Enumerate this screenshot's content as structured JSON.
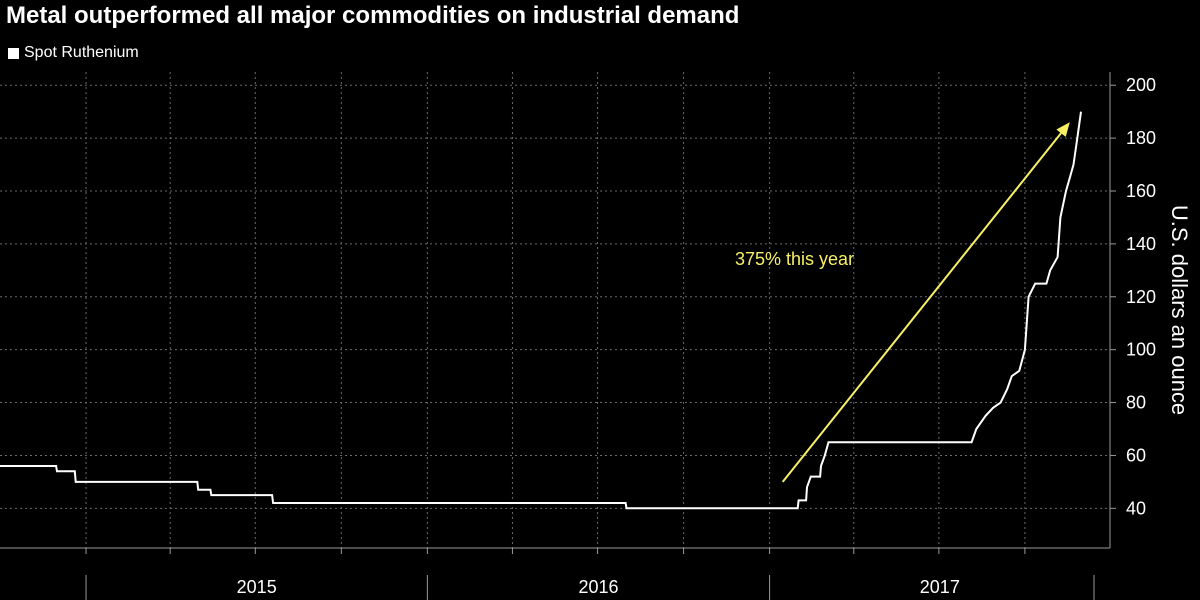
{
  "chart_data": {
    "type": "line",
    "title": "Metal outperformed all major commodities on industrial demand",
    "ylabel": "U.S. dollars an ounce",
    "xlabel": "",
    "ylim": [
      25,
      205
    ],
    "yticks": [
      40,
      60,
      80,
      100,
      120,
      140,
      160,
      180,
      200
    ],
    "xlim": [
      "2014-10-01",
      "2017-12-31"
    ],
    "year_labels": [
      "2015",
      "2016",
      "2017"
    ],
    "grid": true,
    "legend_position": "top-left",
    "y_axis_side": "right",
    "line_color": "#ffffff",
    "series": [
      {
        "name": "Spot Ruthenium",
        "points": [
          [
            "2014-10-01",
            56
          ],
          [
            "2014-11-30",
            56
          ],
          [
            "2014-12-01",
            54
          ],
          [
            "2014-12-20",
            54
          ],
          [
            "2014-12-21",
            50
          ],
          [
            "2015-04-30",
            50
          ],
          [
            "2015-05-01",
            47
          ],
          [
            "2015-05-14",
            47
          ],
          [
            "2015-05-15",
            45
          ],
          [
            "2015-07-19",
            45
          ],
          [
            "2015-07-20",
            42
          ],
          [
            "2016-07-31",
            42
          ],
          [
            "2016-08-01",
            40
          ],
          [
            "2017-01-31",
            40
          ],
          [
            "2017-02-01",
            43
          ],
          [
            "2017-02-09",
            43
          ],
          [
            "2017-02-10",
            48
          ],
          [
            "2017-02-14",
            52
          ],
          [
            "2017-02-24",
            52
          ],
          [
            "2017-02-25",
            56
          ],
          [
            "2017-03-01",
            60
          ],
          [
            "2017-03-05",
            65
          ],
          [
            "2017-08-05",
            65
          ],
          [
            "2017-08-10",
            70
          ],
          [
            "2017-08-20",
            75
          ],
          [
            "2017-08-28",
            78
          ],
          [
            "2017-09-05",
            80
          ],
          [
            "2017-09-12",
            85
          ],
          [
            "2017-09-17",
            90
          ],
          [
            "2017-09-25",
            92
          ],
          [
            "2017-10-01",
            100
          ],
          [
            "2017-10-05",
            120
          ],
          [
            "2017-10-12",
            125
          ],
          [
            "2017-10-24",
            125
          ],
          [
            "2017-10-28",
            130
          ],
          [
            "2017-11-05",
            135
          ],
          [
            "2017-11-08",
            150
          ],
          [
            "2017-11-14",
            160
          ],
          [
            "2017-11-18",
            165
          ],
          [
            "2017-11-22",
            170
          ],
          [
            "2017-11-26",
            180
          ],
          [
            "2017-11-30",
            190
          ]
        ]
      }
    ],
    "annotations": [
      {
        "text": "375% this year",
        "color": "#f7f065",
        "arrow_from": [
          "2017-01-15",
          50
        ],
        "arrow_to": [
          "2017-11-18",
          186
        ],
        "text_at": [
          "2016-11-25",
          132
        ]
      }
    ]
  }
}
